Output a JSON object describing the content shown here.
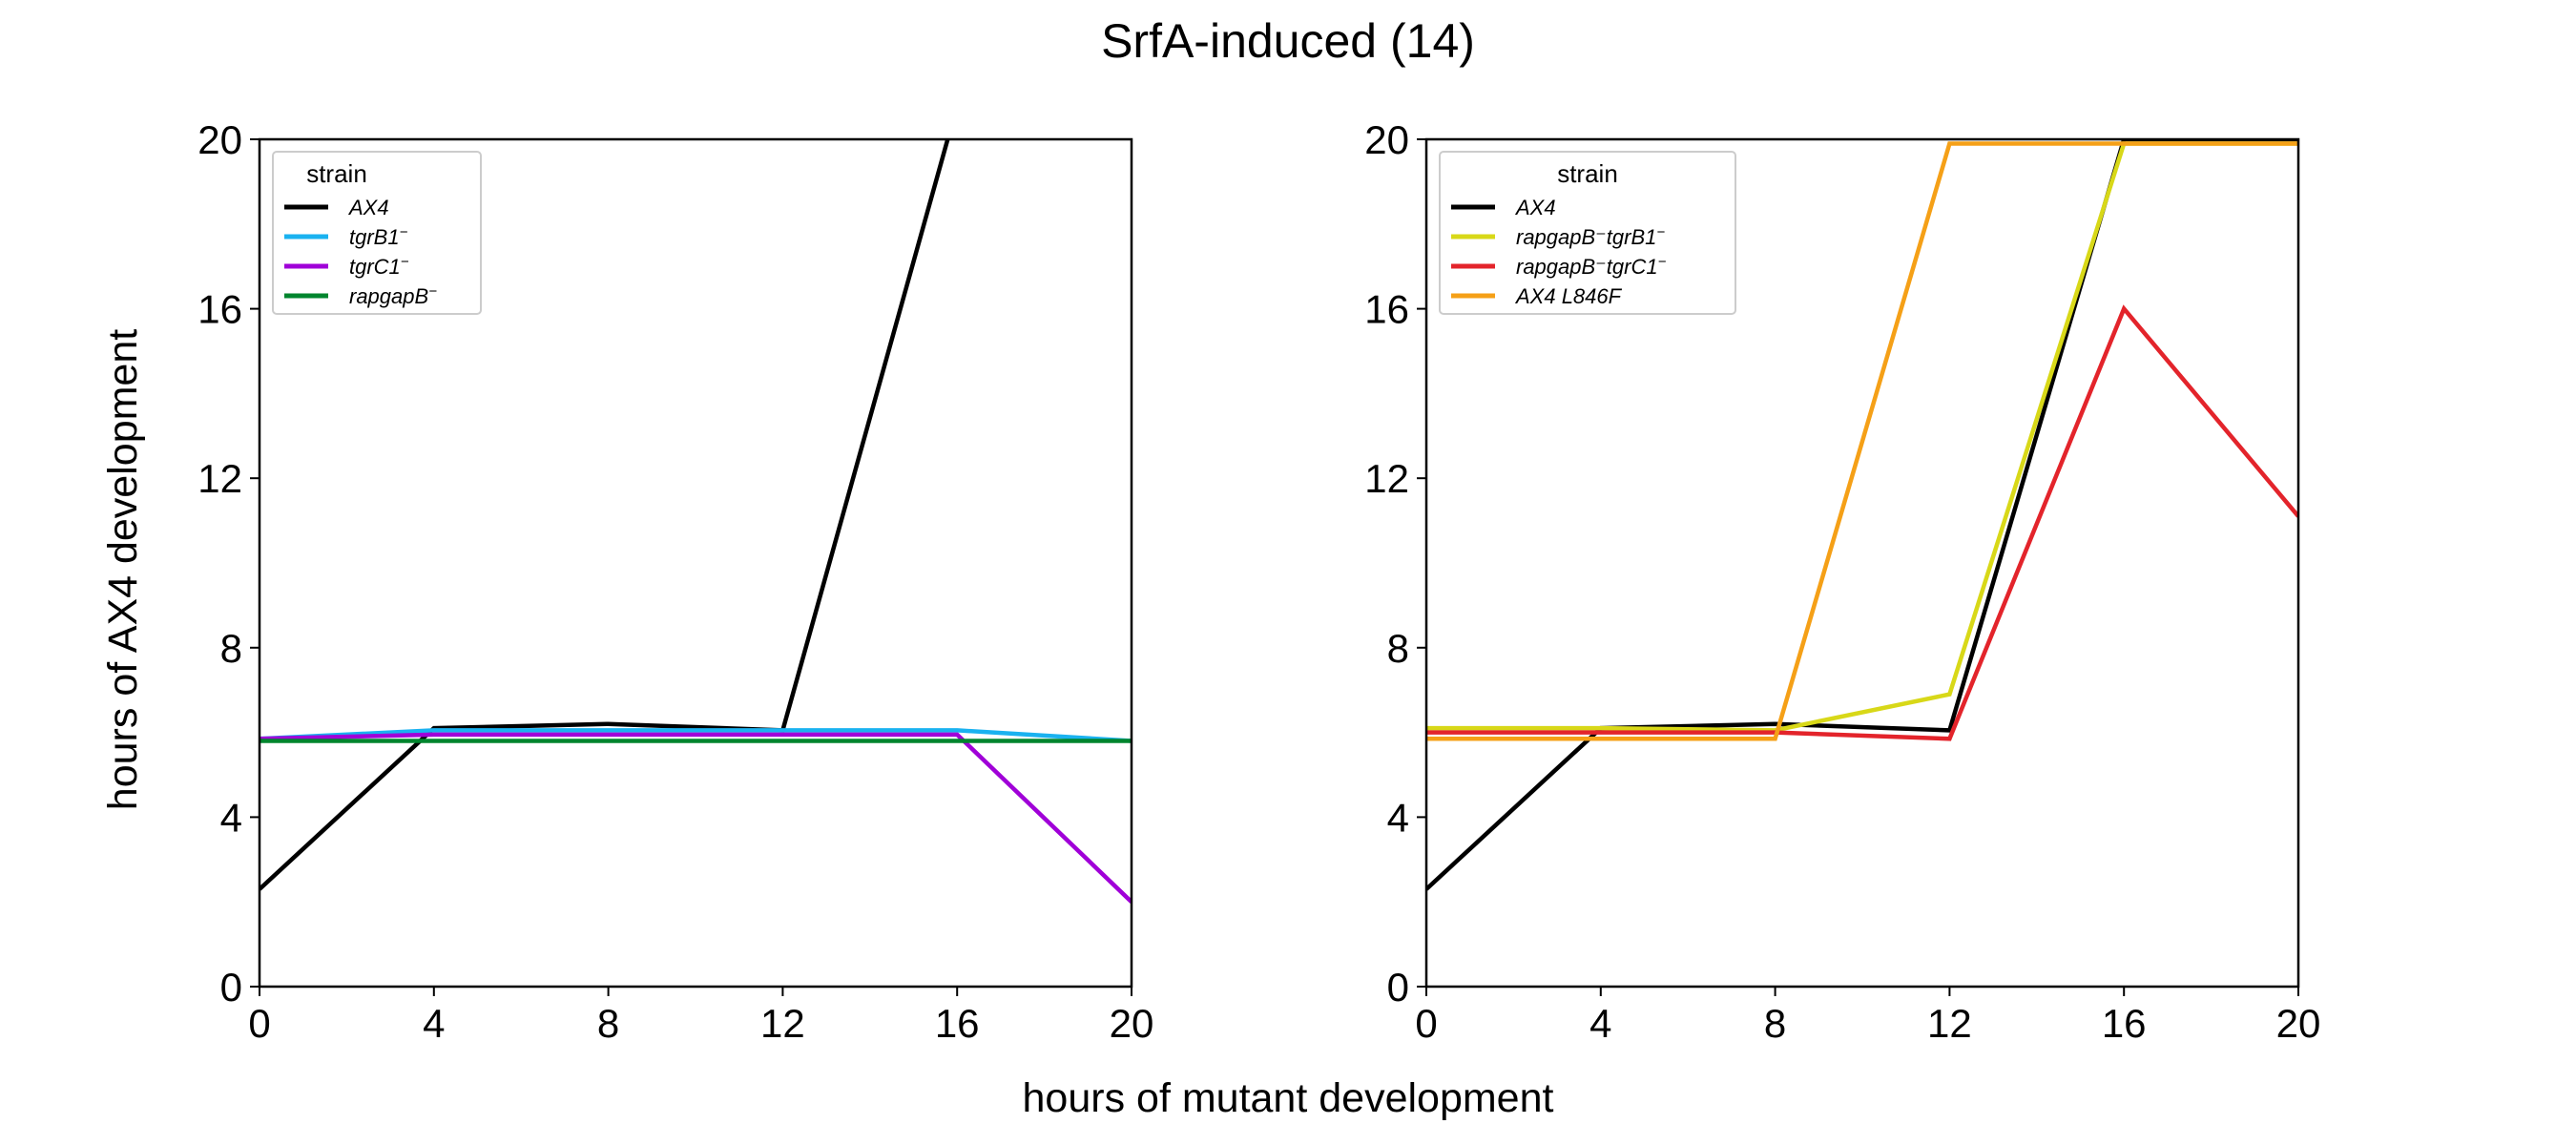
{
  "figure": {
    "title": "SrfA-induced (14)",
    "xlabel": "hours of mutant development",
    "ylabel": "hours of AX4 development"
  },
  "chart_data": [
    {
      "type": "line",
      "x": [
        0,
        4,
        8,
        12,
        16,
        20
      ],
      "xlim": [
        0,
        20
      ],
      "ylim": [
        0,
        20
      ],
      "xticks": [
        "0",
        "4",
        "8",
        "12",
        "16",
        "20"
      ],
      "yticks": [
        "0",
        "4",
        "8",
        "12",
        "16",
        "20"
      ],
      "grid": false,
      "legend": {
        "title": "strain",
        "placement": "top-left"
      },
      "series": [
        {
          "name": "AX4",
          "sup": "",
          "color": "#000000",
          "values": [
            2.3,
            6.1,
            6.2,
            6.05,
            20.8,
            null
          ]
        },
        {
          "name": "tgrB1",
          "sup": "−",
          "color": "#1ab2f0",
          "values": [
            5.85,
            6.05,
            6.05,
            6.05,
            6.05,
            5.8
          ]
        },
        {
          "name": "tgrC1",
          "sup": "−",
          "color": "#a000d8",
          "values": [
            5.85,
            5.95,
            5.95,
            5.95,
            5.95,
            2.0
          ]
        },
        {
          "name": "rapgapB",
          "sup": "−",
          "color": "#00852e",
          "values": [
            5.8,
            5.8,
            5.8,
            5.8,
            5.8,
            5.8
          ]
        }
      ]
    },
    {
      "type": "line",
      "x": [
        0,
        4,
        8,
        12,
        16,
        20
      ],
      "xlim": [
        0,
        20
      ],
      "ylim": [
        0,
        20
      ],
      "xticks": [
        "0",
        "4",
        "8",
        "12",
        "16",
        "20"
      ],
      "yticks": [
        "0",
        "4",
        "8",
        "12",
        "16",
        "20"
      ],
      "grid": false,
      "legend": {
        "title": "strain",
        "placement": "top-left"
      },
      "series": [
        {
          "name": "AX4",
          "sup": "",
          "color": "#000000",
          "values": [
            2.3,
            6.1,
            6.2,
            6.05,
            20.0,
            20.0
          ]
        },
        {
          "name": "rapgapB⁻tgrB1",
          "sup": "−",
          "color": "#d8d818",
          "values": [
            6.1,
            6.1,
            6.05,
            6.9,
            19.9,
            19.9
          ]
        },
        {
          "name": "rapgapB⁻tgrC1",
          "sup": "−",
          "color": "#e3242b",
          "values": [
            6.0,
            6.0,
            6.0,
            5.85,
            16.0,
            11.1
          ]
        },
        {
          "name": "AX4 L846F",
          "sup": "",
          "color": "#f5a017",
          "values": [
            5.85,
            5.85,
            5.85,
            19.9,
            19.9,
            19.9
          ]
        }
      ]
    }
  ]
}
